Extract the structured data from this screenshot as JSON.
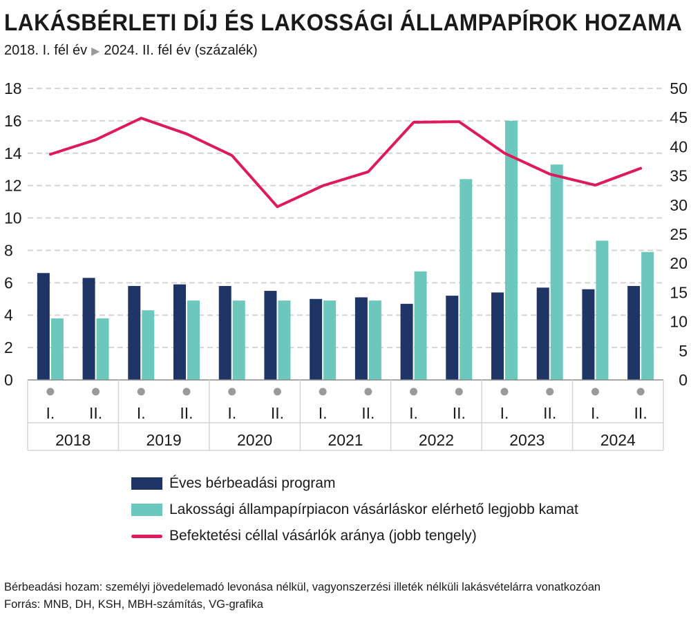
{
  "title": "LAKÁSBÉRLETI DÍJ ÉS LAKOSSÁGI ÁLLAMPAPÍROK HOZAMA",
  "subtitle": {
    "start": "2018. I. fél év",
    "arrow_icon": "play-triangle-icon",
    "end": "2024. II. fél év (százalék)"
  },
  "colors": {
    "series1": "#1f3566",
    "series2": "#6cc7bd",
    "series3": "#de1a5a",
    "grid": "#d4d4d4",
    "axis_text": "#1a1a1a",
    "dot": "#9a9a9a"
  },
  "chart_data": {
    "type": "bar",
    "categories": [
      "I.",
      "II.",
      "I.",
      "II.",
      "I.",
      "II.",
      "I.",
      "II.",
      "I.",
      "II.",
      "I.",
      "II.",
      "I.",
      "II."
    ],
    "years": [
      "2018",
      "2019",
      "2020",
      "2021",
      "2022",
      "2023",
      "2024"
    ],
    "y_left": {
      "ticks": [
        "0",
        "2",
        "4",
        "6",
        "8",
        "10",
        "12",
        "14",
        "16",
        "18"
      ],
      "ylim": [
        0,
        18
      ]
    },
    "y_right": {
      "ticks": [
        "0",
        "5",
        "10",
        "15",
        "20",
        "25",
        "30",
        "35",
        "40",
        "45",
        "50"
      ],
      "ylim": [
        0,
        50
      ]
    },
    "grid": "horizontal dashed",
    "series": [
      {
        "name": "Éves bérbeadási program",
        "type": "bar",
        "axis": "left",
        "values": [
          6.6,
          6.3,
          5.8,
          5.9,
          5.8,
          5.5,
          5.0,
          5.1,
          4.7,
          5.2,
          5.4,
          5.7,
          5.6,
          5.8
        ]
      },
      {
        "name": "Lakossági állampapírpiacon vásárláskor elérhető legjobb kamat",
        "type": "bar",
        "axis": "left",
        "values": [
          3.8,
          3.8,
          4.3,
          4.9,
          4.9,
          4.9,
          4.9,
          4.9,
          6.7,
          12.4,
          16.0,
          13.3,
          8.6,
          7.9
        ]
      },
      {
        "name": "Befektetési céllal vásárlók aránya (jobb tengely)",
        "type": "line",
        "axis": "right",
        "values": [
          38.7,
          41.2,
          44.9,
          42.2,
          38.5,
          29.7,
          33.3,
          35.7,
          44.2,
          44.3,
          38.9,
          35.3,
          33.4,
          36.3
        ]
      }
    ]
  },
  "legend": [
    {
      "label": "Éves bérbeadási program",
      "kind": "bar"
    },
    {
      "label": "Lakossági állampapírpiacon vásárláskor elérhető legjobb kamat",
      "kind": "bar"
    },
    {
      "label": "Befektetési céllal vásárlók aránya (jobb tengely)",
      "kind": "line"
    }
  ],
  "footer": {
    "note": "Bérbeadási hozam: személyi jövedelemadó levonása nélkül, vagyonszerzési illeték nélküli lakásvételárra vonatkozóan",
    "source": "Forrás: MNB, DH, KSH, MBH-számítás, VG-grafika"
  }
}
